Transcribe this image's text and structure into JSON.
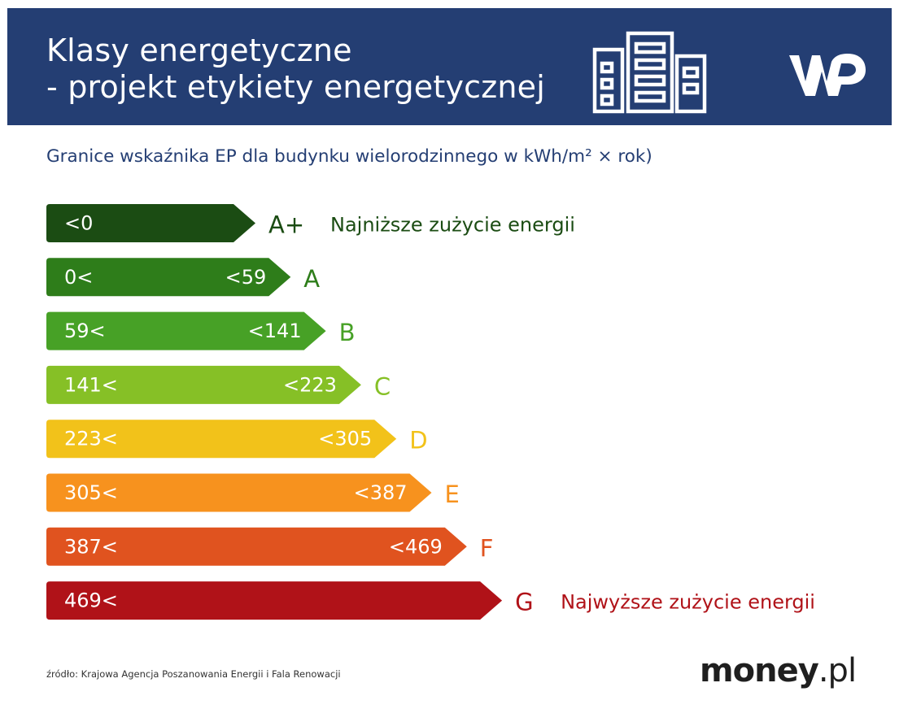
{
  "header": {
    "title_line1": "Klasy energetyczne",
    "title_line2": "- projekt etykiety energetycznej",
    "background_color": "#243e73",
    "icon": "building-icon",
    "logo": "wp-logo"
  },
  "subtitle": "Granice wskaźnika EP dla budynku wielorodzinnego w kWh/m² × rok)",
  "chart_data": {
    "type": "bar",
    "title": "",
    "xlabel": "",
    "ylabel": "",
    "categories": [
      "A+",
      "A",
      "B",
      "C",
      "D",
      "E",
      "F",
      "G"
    ],
    "series": [
      {
        "lower_bound_labels": [
          "<0",
          "0<",
          "59<",
          "141<",
          "223<",
          "305<",
          "387<",
          "469<"
        ],
        "upper_bound_labels": [
          "",
          "<59",
          "<141",
          "<223",
          "<305",
          "<387",
          "<469",
          ""
        ],
        "lower_bounds": [
          null,
          0,
          59,
          141,
          223,
          305,
          387,
          469
        ],
        "upper_bounds": [
          0,
          59,
          141,
          223,
          305,
          387,
          469,
          null
        ]
      }
    ],
    "colors": [
      "#1b4c13",
      "#2e7d1a",
      "#47a126",
      "#86c026",
      "#f2c21a",
      "#f7921e",
      "#e0531f",
      "#b01218"
    ],
    "annotations": [
      {
        "category": "A+",
        "text": "Najniższe zużycie energii"
      },
      {
        "category": "G",
        "text": "Najwyższe zużycie energii"
      }
    ]
  },
  "footer": {
    "source": "źródło: Krajowa Agencja Poszanowania Energii i Fala Renowacji",
    "brand_main": "money",
    "brand_tld": ".pl"
  }
}
